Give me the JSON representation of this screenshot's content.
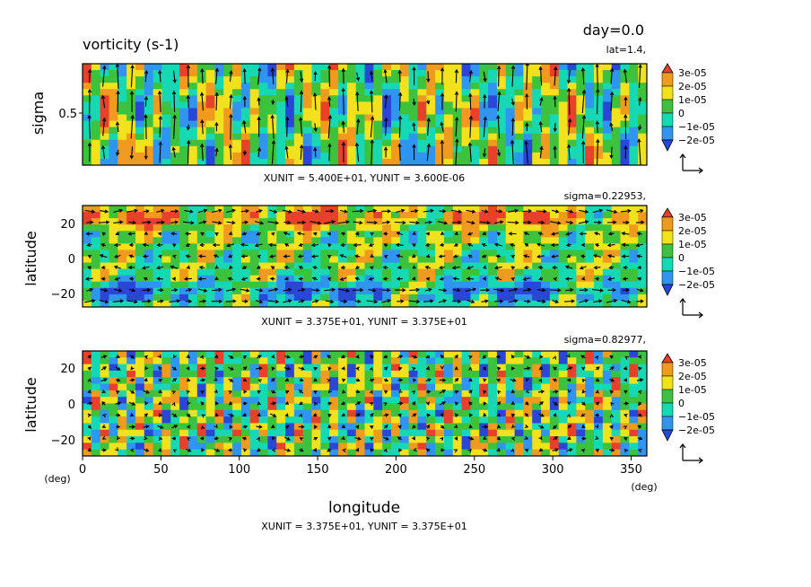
{
  "header": {
    "title": "vorticity (s-1)",
    "day_label": "day=0.0"
  },
  "colorbar": {
    "labels": [
      "3e-05",
      "2e-05",
      "1e-05",
      "0",
      "−1e-05",
      "−2e-05"
    ],
    "colors": [
      "#e8402a",
      "#f09a1e",
      "#f2e21e",
      "#3cc23c",
      "#16d9b4",
      "#2f95f0",
      "#2a46d6"
    ]
  },
  "chart_data": [
    {
      "type": "heatmap",
      "ylabel": "sigma",
      "y_ticks": [
        "0.5"
      ],
      "x_ticks": [],
      "annotation": "lat=1.4,",
      "unit_text": "XUNIT = 5.400E+01, YUNIT = 3.600E-06",
      "xlim": [
        0,
        360
      ],
      "ylim": [
        0,
        1
      ],
      "overlay": "vector arrows",
      "color_range": [
        -2e-05,
        3e-05
      ]
    },
    {
      "type": "heatmap",
      "ylabel": "latitude",
      "y_ticks": [
        "20",
        "0",
        "−20"
      ],
      "x_ticks": [],
      "annotation": "sigma=0.22953,",
      "unit_text": "XUNIT = 3.375E+01, YUNIT = 3.375E+01",
      "xlim": [
        0,
        360
      ],
      "ylim": [
        -30,
        30
      ],
      "overlay": "vector arrows",
      "color_range": [
        -2e-05,
        3e-05
      ]
    },
    {
      "type": "heatmap",
      "ylabel": "latitude",
      "xlabel": "longitude",
      "y_ticks": [
        "20",
        "0",
        "−20"
      ],
      "x_ticks": [
        "0",
        "50",
        "100",
        "150",
        "200",
        "250",
        "300",
        "350"
      ],
      "x_unit_left": "(deg)",
      "x_unit_right": "(deg)",
      "annotation": "sigma=0.82977,",
      "unit_text": "XUNIT = 3.375E+01, YUNIT = 3.375E+01",
      "xlim": [
        0,
        360
      ],
      "ylim": [
        -30,
        30
      ],
      "overlay": "vector arrows",
      "color_range": [
        -2e-05,
        3e-05
      ]
    }
  ]
}
